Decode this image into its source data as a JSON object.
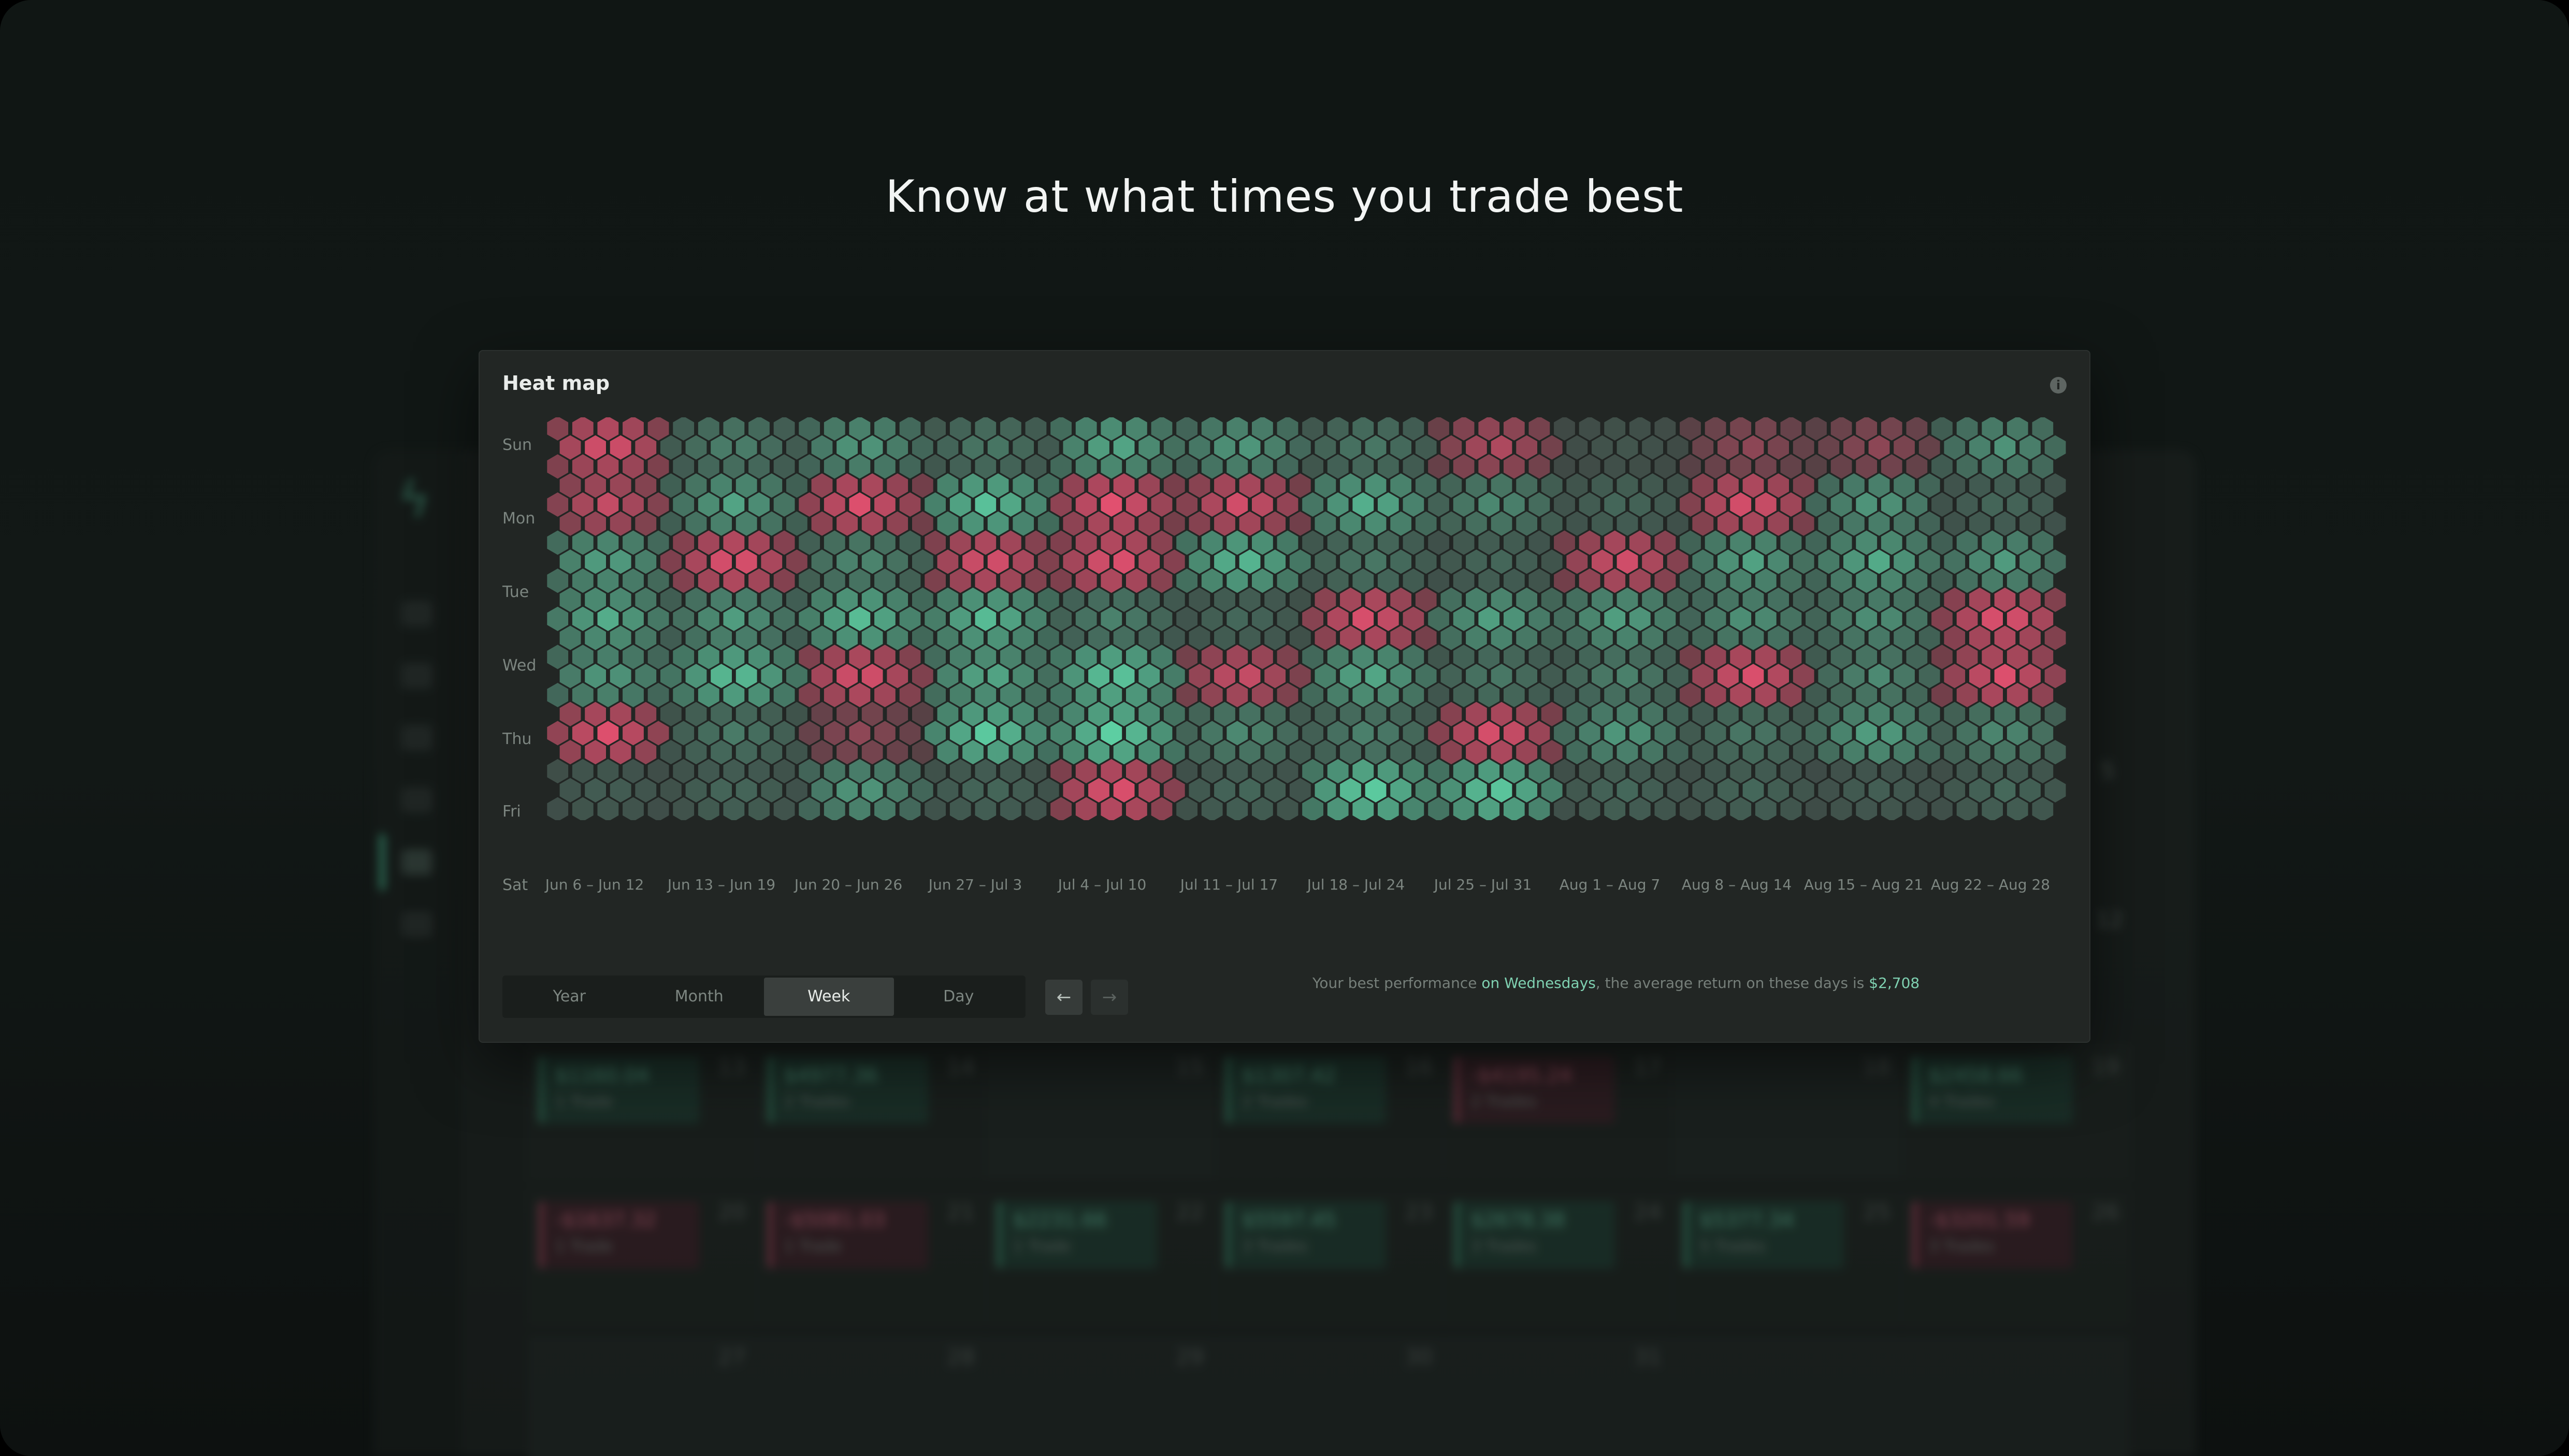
{
  "headline": "Know at what times you trade best",
  "card": {
    "title": "Heat map",
    "info_icon": "info-icon",
    "days": [
      "Sun",
      "Mon",
      "Tue",
      "Wed",
      "Thu",
      "Fri",
      "Sat"
    ],
    "weeks": [
      "Jun 6 – Jun 12",
      "Jun 13 – Jun 19",
      "Jun 20 – Jun 26",
      "Jun 27 – Jul 3",
      "Jul 4 – Jul 10",
      "Jul 11 – Jul 17",
      "Jul 18 – Jul 24",
      "Jul 25 – Jul 31",
      "Aug 1 – Aug 7",
      "Aug 8 – Aug 14",
      "Aug 15 – Aug 21",
      "Aug 22 – Aug 28"
    ],
    "heat": [
      [
        -0.85,
        0.35,
        0.5,
        0.3,
        0.6,
        0.5,
        0.3,
        -0.6,
        0.1,
        -0.4,
        -0.4,
        0.45
      ],
      [
        -0.7,
        0.55,
        -0.85,
        0.75,
        -0.9,
        -0.8,
        0.65,
        0.4,
        0.2,
        -0.85,
        0.5,
        0.2
      ],
      [
        0.55,
        -0.9,
        0.4,
        -0.85,
        -0.9,
        0.7,
        0.3,
        0.2,
        -0.8,
        0.55,
        0.6,
        0.5
      ],
      [
        0.6,
        0.5,
        0.7,
        0.7,
        0.35,
        0.2,
        -0.85,
        0.55,
        0.55,
        0.45,
        0.45,
        -0.9
      ],
      [
        0.5,
        0.75,
        -0.85,
        0.6,
        0.8,
        -0.75,
        0.6,
        0.3,
        0.35,
        -0.85,
        0.4,
        -0.85
      ],
      [
        -0.85,
        0.3,
        -0.4,
        0.8,
        0.85,
        0.4,
        0.35,
        -0.85,
        0.5,
        0.3,
        0.55,
        0.4
      ],
      [
        0.15,
        0.2,
        0.5,
        0.2,
        -0.9,
        0.2,
        0.85,
        0.8,
        0.2,
        0.2,
        0.15,
        0.2
      ]
    ],
    "colors": {
      "positive": "#5fd6a8",
      "negative": "#e2506f",
      "neutral": "#3e4341",
      "background": "#222624"
    },
    "ranges": [
      "Year",
      "Month",
      "Week",
      "Day"
    ],
    "active_range": "Week",
    "prev_label": "←",
    "next_label": "→",
    "best": {
      "prefix": "Your best performance ",
      "day": "on Wednesdays",
      "middle": ", the average return on these days is ",
      "value": "$2,708"
    }
  },
  "background": {
    "logo_glyph": "ϟ",
    "side_numbers": [
      "5",
      "12"
    ],
    "rows": [
      [
        {
          "day": "13",
          "amount": "$1160.04",
          "trades": "1 Trade",
          "type": "win"
        },
        {
          "day": "14",
          "amount": "$4977.36",
          "trades": "2 Trades",
          "type": "win"
        },
        {
          "day": "15",
          "amount": "",
          "trades": "",
          "type": "empty"
        },
        {
          "day": "16",
          "amount": "$1307.42",
          "trades": "2 Trades",
          "type": "win"
        },
        {
          "day": "17",
          "amount": "-$4195.24",
          "trades": "2 Trades",
          "type": "loss"
        },
        {
          "day": "18",
          "amount": "",
          "trades": "",
          "type": "empty"
        },
        {
          "day": "19",
          "amount": "$2458.66",
          "trades": "4 Trades",
          "type": "win"
        }
      ],
      [
        {
          "day": "20",
          "amount": "-$1637.32",
          "trades": "1 Trade",
          "type": "loss"
        },
        {
          "day": "21",
          "amount": "-$5081.03",
          "trades": "1 Trade",
          "type": "loss"
        },
        {
          "day": "22",
          "amount": "$2231.66",
          "trades": "1 Trade",
          "type": "win"
        },
        {
          "day": "23",
          "amount": "$5597.45",
          "trades": "3 Trades",
          "type": "win"
        },
        {
          "day": "24",
          "amount": "$2678.38",
          "trades": "3 Trades",
          "type": "win"
        },
        {
          "day": "25",
          "amount": "$5377.34",
          "trades": "5 Trades",
          "type": "win"
        },
        {
          "day": "26",
          "amount": "-$3201.59",
          "trades": "3 Trades",
          "type": "loss"
        }
      ],
      [
        {
          "day": "27",
          "amount": "",
          "trades": "",
          "type": "empty"
        },
        {
          "day": "28",
          "amount": "",
          "trades": "",
          "type": "empty"
        },
        {
          "day": "29",
          "amount": "",
          "trades": "",
          "type": "empty"
        },
        {
          "day": "30",
          "amount": "",
          "trades": "",
          "type": "empty"
        },
        {
          "day": "31",
          "amount": "",
          "trades": "",
          "type": "empty"
        },
        {
          "day": "",
          "amount": "",
          "trades": "",
          "type": "empty"
        },
        {
          "day": "",
          "amount": "",
          "trades": "",
          "type": "empty"
        }
      ]
    ]
  }
}
